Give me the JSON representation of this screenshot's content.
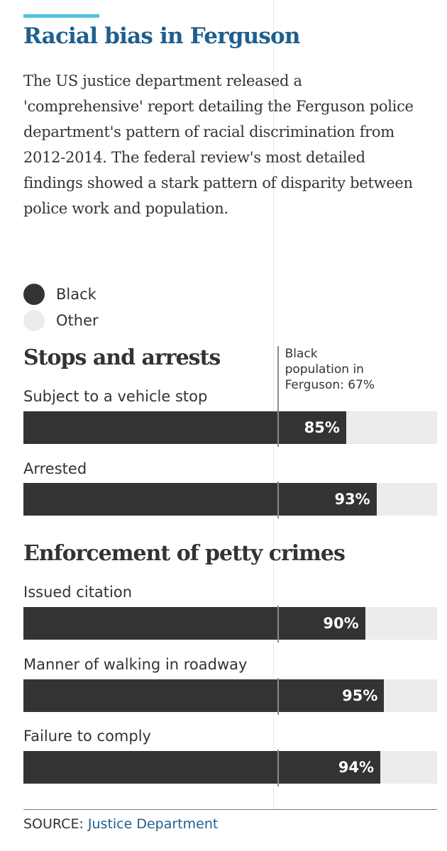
{
  "header": {
    "title": "Racial bias in Ferguson",
    "intro": "The US justice department released a 'comprehensive' report detailing the Ferguson police department's pattern of racial discrimination from 2012-2014. The federal review's most detailed findings showed a stark pattern of disparity between police work and population."
  },
  "legend": [
    {
      "label": "Black",
      "color": "#333333"
    },
    {
      "label": "Other",
      "color": "#ececec"
    }
  ],
  "reference": {
    "line1": "Black",
    "line2": "population in",
    "line3": "Ferguson: 67%",
    "value": 67
  },
  "source": {
    "prefix": "SOURCE:",
    "link": "Justice Department"
  },
  "chart_data": {
    "type": "bar",
    "orientation": "horizontal",
    "stacked": true,
    "series": [
      {
        "name": "Black",
        "color": "#333333"
      },
      {
        "name": "Other",
        "color": "#ececec"
      }
    ],
    "reference_line": {
      "label": "Black population in Ferguson: 67%",
      "value": 67
    },
    "xlim": [
      0,
      100
    ],
    "sections": [
      {
        "title": "Stops and arrests",
        "bars": [
          {
            "label": "Subject to a vehicle stop",
            "value": 85,
            "display": "85%"
          },
          {
            "label": "Arrested",
            "value": 93,
            "display": "93%"
          }
        ]
      },
      {
        "title": "Enforcement of petty crimes",
        "bars": [
          {
            "label": "Issued citation",
            "value": 90,
            "display": "90%"
          },
          {
            "label": "Manner of walking in roadway",
            "value": 95,
            "display": "95%"
          },
          {
            "label": "Failure to comply",
            "value": 94,
            "display": "94%"
          }
        ]
      }
    ]
  }
}
